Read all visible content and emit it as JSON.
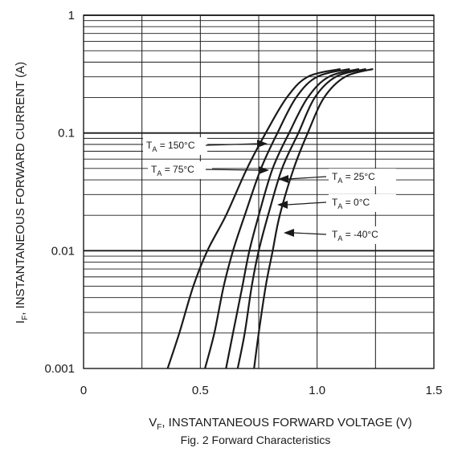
{
  "chart_data": {
    "type": "line",
    "title": "",
    "caption": "Fig. 2  Forward Characteristics",
    "xlabel": {
      "main": "V",
      "sub": "F",
      "rest": ", INSTANTANEOUS FORWARD VOLTAGE (V)"
    },
    "ylabel": {
      "main": "I",
      "sub": "F",
      "rest": ", INSTANTANEOUS FORWARD CURRENT (A)"
    },
    "xlim": [
      0,
      1.5
    ],
    "ylim": [
      0.001,
      1
    ],
    "yscale": "log",
    "grid": true,
    "x_ticks": [
      "0",
      "0.5",
      "1.0",
      "1.5"
    ],
    "y_ticks": [
      "0.001",
      "0.01",
      "0.1",
      "1"
    ],
    "series": [
      {
        "name": "150°C",
        "label_main": "T",
        "label_sub": "A",
        "label_rest": " = 150°C",
        "points": [
          [
            0.36,
            0.001
          ],
          [
            0.41,
            0.002
          ],
          [
            0.47,
            0.005
          ],
          [
            0.53,
            0.01
          ],
          [
            0.61,
            0.02
          ],
          [
            0.7,
            0.05
          ],
          [
            0.78,
            0.1
          ],
          [
            0.87,
            0.2
          ],
          [
            0.96,
            0.3
          ],
          [
            1.1,
            0.35
          ]
        ]
      },
      {
        "name": "75°C",
        "label_main": "T",
        "label_sub": "A",
        "label_rest": " = 75°C",
        "points": [
          [
            0.52,
            0.001
          ],
          [
            0.56,
            0.002
          ],
          [
            0.6,
            0.005
          ],
          [
            0.64,
            0.01
          ],
          [
            0.69,
            0.02
          ],
          [
            0.76,
            0.05
          ],
          [
            0.83,
            0.1
          ],
          [
            0.91,
            0.2
          ],
          [
            1.0,
            0.3
          ],
          [
            1.14,
            0.35
          ]
        ]
      },
      {
        "name": "25°C",
        "label_main": "T",
        "label_sub": "A",
        "label_rest": " = 25°C",
        "points": [
          [
            0.61,
            0.001
          ],
          [
            0.64,
            0.002
          ],
          [
            0.68,
            0.005
          ],
          [
            0.71,
            0.01
          ],
          [
            0.75,
            0.02
          ],
          [
            0.81,
            0.05
          ],
          [
            0.88,
            0.1
          ],
          [
            0.96,
            0.2
          ],
          [
            1.05,
            0.3
          ],
          [
            1.18,
            0.35
          ]
        ]
      },
      {
        "name": "0°C",
        "label_main": "T",
        "label_sub": "A",
        "label_rest": " = 0°C",
        "points": [
          [
            0.66,
            0.001
          ],
          [
            0.69,
            0.002
          ],
          [
            0.72,
            0.005
          ],
          [
            0.75,
            0.01
          ],
          [
            0.79,
            0.02
          ],
          [
            0.85,
            0.05
          ],
          [
            0.92,
            0.1
          ],
          [
            0.99,
            0.2
          ],
          [
            1.08,
            0.3
          ],
          [
            1.21,
            0.35
          ]
        ]
      },
      {
        "name": "-40°C",
        "label_main": "T",
        "label_sub": "A",
        "label_rest": " = -40°C",
        "points": [
          [
            0.73,
            0.001
          ],
          [
            0.75,
            0.002
          ],
          [
            0.78,
            0.005
          ],
          [
            0.81,
            0.01
          ],
          [
            0.84,
            0.02
          ],
          [
            0.9,
            0.05
          ],
          [
            0.96,
            0.1
          ],
          [
            1.03,
            0.2
          ],
          [
            1.12,
            0.3
          ],
          [
            1.24,
            0.35
          ]
        ]
      }
    ]
  },
  "colors": {
    "line": "#1a1a1a",
    "grid": "#1a1a1a",
    "background": "#ffffff"
  }
}
